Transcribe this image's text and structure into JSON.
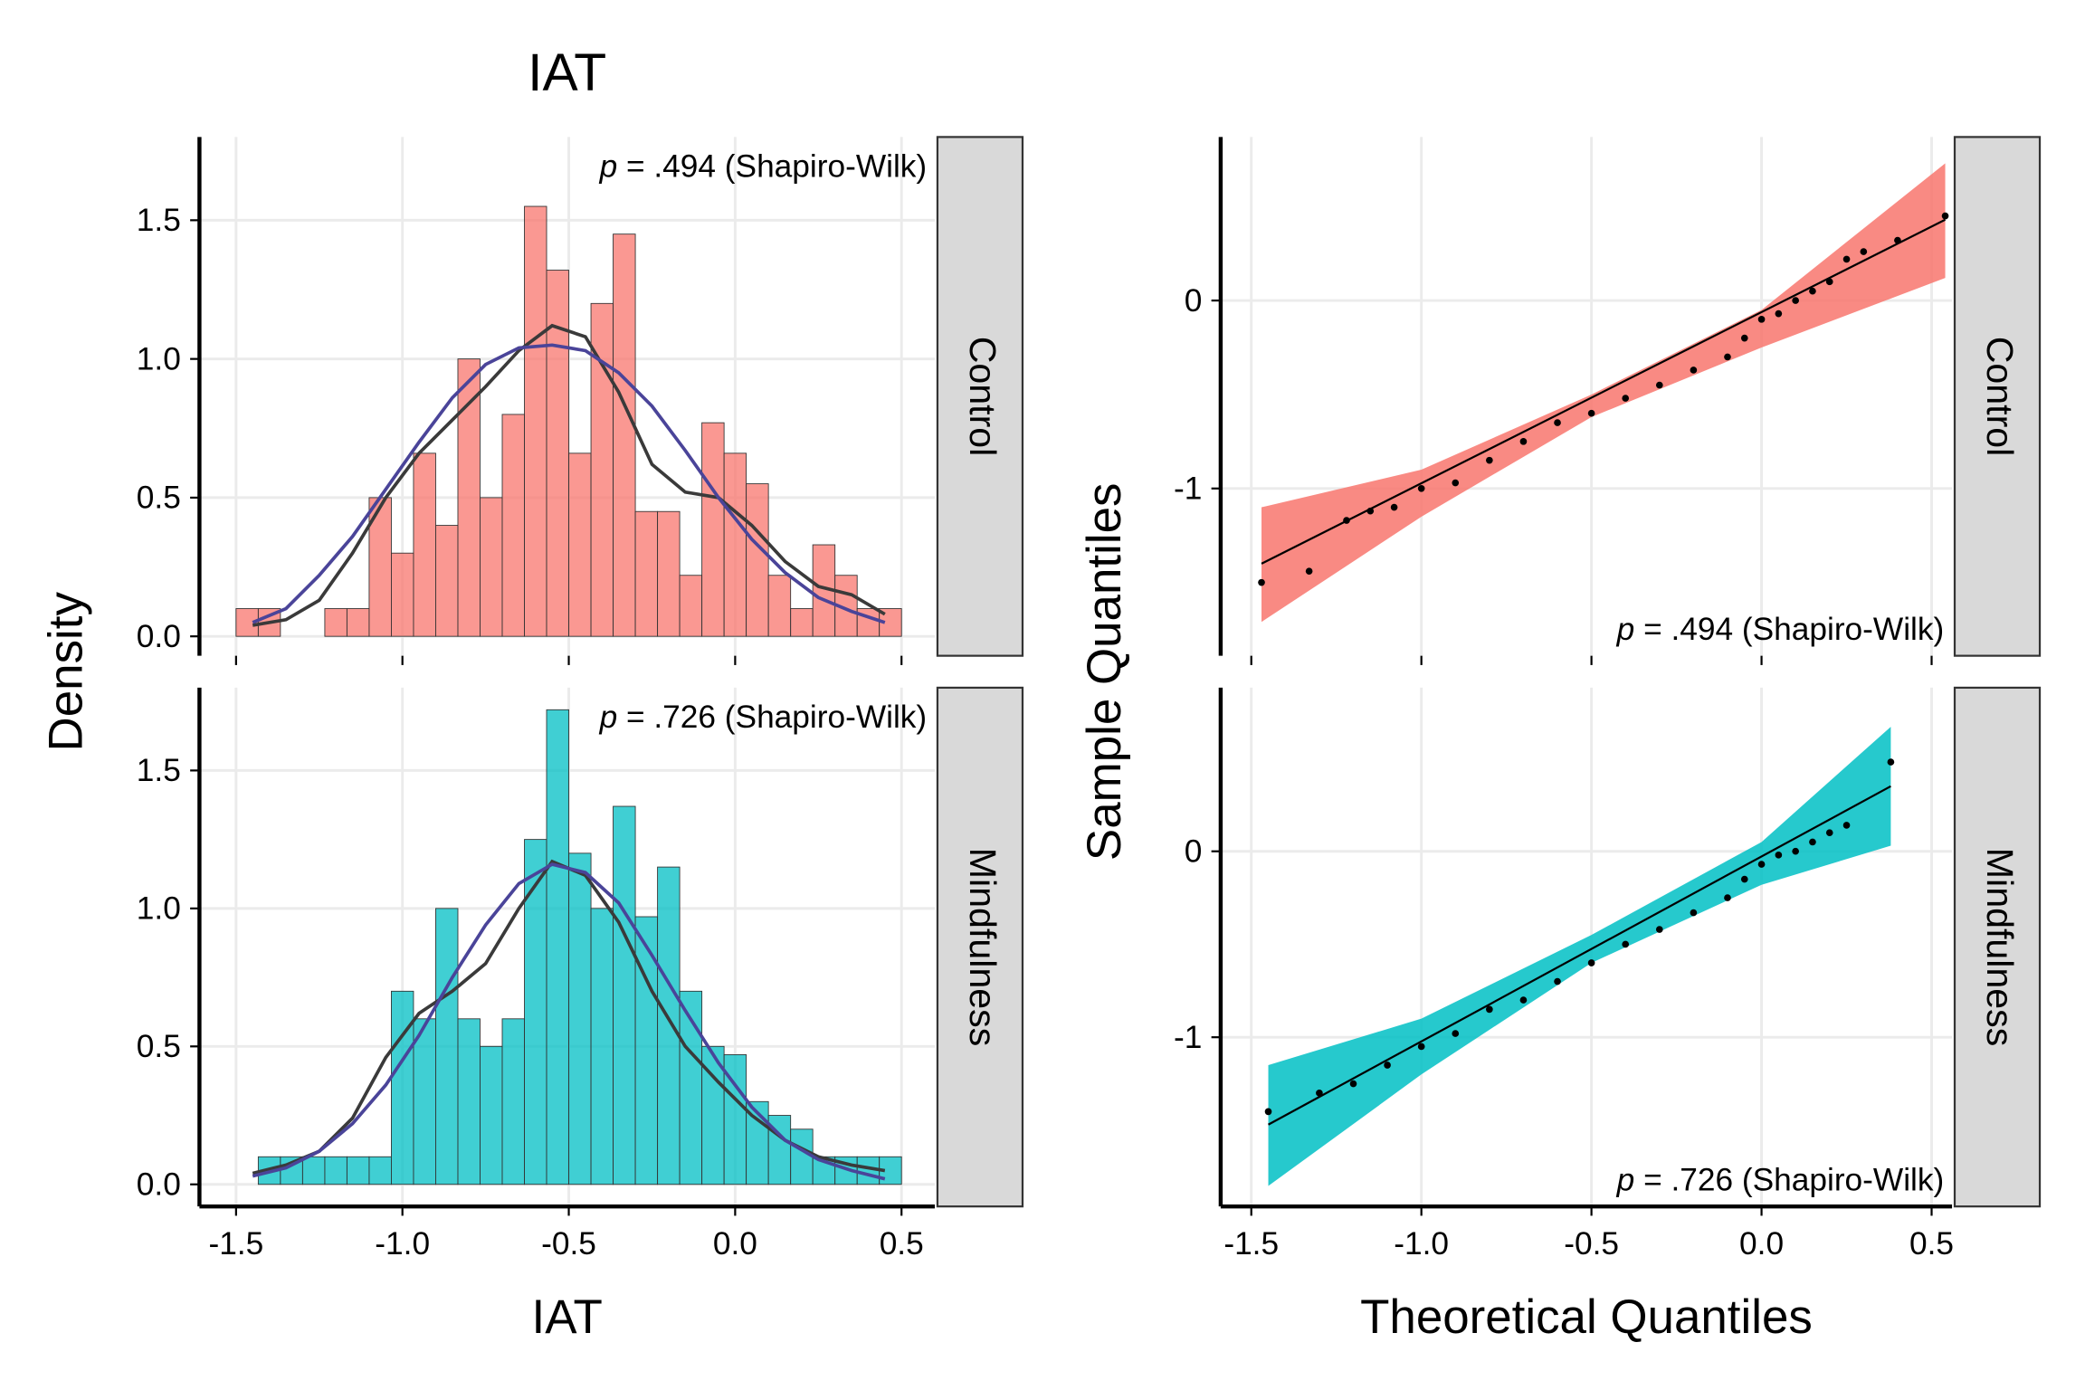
{
  "chart_data": [
    {
      "type": "histogram",
      "title": "IAT",
      "y_label": "Density",
      "facet": "Control",
      "color": "#F8766D",
      "annotation_prefix": "p",
      "annotation": " = .494 (Shapiro-Wilk)",
      "bins": [
        -1.5,
        -1.4333,
        -1.3667,
        -1.3,
        -1.2333,
        -1.1667,
        -1.1,
        -1.0333,
        -0.9667,
        -0.9,
        -0.8333,
        -0.7667,
        -0.7,
        -0.6333,
        -0.5667,
        -0.5,
        -0.4333,
        -0.3667,
        -0.3,
        -0.2333,
        -0.1667,
        -0.1,
        -0.0333,
        0.0333,
        0.1,
        0.1667,
        0.2333,
        0.3,
        0.3667,
        0.4333,
        0.5
      ],
      "values": [
        0.1,
        0.1,
        0,
        0,
        0.1,
        0.1,
        0.5,
        0.3,
        0.66,
        0.4,
        1.0,
        0.5,
        0.8,
        1.55,
        1.32,
        0.66,
        1.2,
        1.45,
        0.45,
        0.45,
        0.22,
        0.77,
        0.66,
        0.55,
        0.22,
        0.1,
        0.33,
        0.22,
        0.1,
        0.1
      ],
      "curve_x": [
        -1.45,
        -1.35,
        -1.25,
        -1.15,
        -1.05,
        -0.95,
        -0.85,
        -0.75,
        -0.65,
        -0.55,
        -0.45,
        -0.35,
        -0.25,
        -0.15,
        -0.05,
        0.05,
        0.15,
        0.25,
        0.35,
        0.45
      ],
      "curves": [
        {
          "color": "#3a3a3a",
          "values": [
            0.04,
            0.06,
            0.13,
            0.3,
            0.5,
            0.66,
            0.78,
            0.9,
            1.03,
            1.12,
            1.08,
            0.88,
            0.62,
            0.52,
            0.5,
            0.4,
            0.27,
            0.18,
            0.15,
            0.08
          ]
        },
        {
          "color": "#4a4499",
          "values": [
            0.05,
            0.1,
            0.22,
            0.36,
            0.53,
            0.7,
            0.86,
            0.98,
            1.04,
            1.05,
            1.03,
            0.95,
            0.83,
            0.67,
            0.5,
            0.35,
            0.23,
            0.14,
            0.09,
            0.05
          ]
        }
      ],
      "xlim": [
        -1.61,
        0.6
      ],
      "ylim": [
        -0.07,
        1.8
      ],
      "xticks": [
        -1.5,
        -1,
        -0.5,
        0,
        0.5
      ],
      "yticks": [
        {
          "value": 0,
          "label": "0.0"
        },
        0.5,
        {
          "value": 1,
          "label": "1.0"
        },
        1.5
      ],
      "grid": true
    },
    {
      "type": "histogram",
      "x_label": "IAT",
      "facet": "Mindfulness",
      "color": "#00BFC4",
      "annotation_prefix": "p",
      "annotation": " = .726 (Shapiro-Wilk)",
      "bins": [
        -1.5,
        -1.4333,
        -1.3667,
        -1.3,
        -1.2333,
        -1.1667,
        -1.1,
        -1.0333,
        -0.9667,
        -0.9,
        -0.8333,
        -0.7667,
        -0.7,
        -0.6333,
        -0.5667,
        -0.5,
        -0.4333,
        -0.3667,
        -0.3,
        -0.2333,
        -0.1667,
        -0.1,
        -0.0333,
        0.0333,
        0.1,
        0.1667,
        0.2333,
        0.3,
        0.3667,
        0.4333,
        0.5
      ],
      "values": [
        0,
        0.1,
        0.1,
        0.1,
        0.1,
        0.1,
        0.1,
        0.7,
        0.6,
        1.0,
        0.6,
        0.5,
        0.6,
        1.25,
        1.72,
        1.2,
        1.0,
        1.37,
        0.97,
        1.15,
        0.7,
        0.5,
        0.47,
        0.3,
        0.25,
        0.2,
        0.1,
        0.1,
        0.1,
        0.1
      ],
      "curve_x": [
        -1.45,
        -1.35,
        -1.25,
        -1.15,
        -1.05,
        -0.95,
        -0.85,
        -0.75,
        -0.65,
        -0.55,
        -0.45,
        -0.35,
        -0.25,
        -0.15,
        -0.05,
        0.05,
        0.15,
        0.25,
        0.35,
        0.45
      ],
      "curves": [
        {
          "color": "#3a3a3a",
          "values": [
            0.04,
            0.07,
            0.12,
            0.24,
            0.46,
            0.62,
            0.7,
            0.8,
            1.0,
            1.17,
            1.12,
            0.95,
            0.7,
            0.5,
            0.37,
            0.25,
            0.16,
            0.1,
            0.07,
            0.05
          ]
        },
        {
          "color": "#4a4499",
          "values": [
            0.03,
            0.06,
            0.12,
            0.22,
            0.36,
            0.54,
            0.75,
            0.94,
            1.09,
            1.16,
            1.13,
            1.02,
            0.83,
            0.63,
            0.44,
            0.28,
            0.16,
            0.09,
            0.05,
            0.02
          ]
        }
      ],
      "xlim": [
        -1.61,
        0.6
      ],
      "ylim": [
        -0.08,
        1.8
      ],
      "xticks": [
        -1.5,
        {
          "value": -1,
          "label": "-1.0"
        },
        -0.5,
        {
          "value": 0,
          "label": "0.0"
        },
        0.5
      ],
      "yticks": [
        {
          "value": 0,
          "label": "0.0"
        },
        0.5,
        {
          "value": 1,
          "label": "1.0"
        },
        1.5
      ],
      "grid": true
    },
    {
      "type": "qq",
      "y_label": "Sample Quantiles",
      "facet": "Control",
      "color": "#F8766D",
      "annotation_prefix": "p",
      "annotation": " = .494 (Shapiro-Wilk)",
      "x": [
        -1.47,
        -1.33,
        -1.22,
        -1.15,
        -1.08,
        -1.0,
        -0.9,
        -0.8,
        -0.7,
        -0.6,
        -0.5,
        -0.4,
        -0.3,
        -0.2,
        -0.1,
        -0.05,
        0.0,
        0.05,
        0.1,
        0.15,
        0.2,
        0.25,
        0.3,
        0.4,
        0.54
      ],
      "values": [
        -1.5,
        -1.44,
        -1.17,
        -1.12,
        -1.1,
        -1.0,
        -0.97,
        -0.85,
        -0.75,
        -0.65,
        -0.6,
        -0.52,
        -0.45,
        -0.37,
        -0.3,
        -0.2,
        -0.1,
        -0.07,
        0.0,
        0.05,
        0.1,
        0.22,
        0.26,
        0.32,
        0.45
      ],
      "line": {
        "x": [
          -1.47,
          0.54
        ],
        "values": [
          -1.4,
          0.43
        ]
      },
      "band": {
        "x": [
          -1.47,
          -1.0,
          -0.5,
          0,
          0.54
        ],
        "upper": [
          -1.1,
          -0.9,
          -0.5,
          -0.05,
          0.73
        ],
        "lower": [
          -1.71,
          -1.15,
          -0.62,
          -0.25,
          0.12
        ]
      },
      "xlim": [
        -1.59,
        0.56
      ],
      "ylim": [
        -1.89,
        0.87
      ],
      "xticks": [
        -1.5,
        -1,
        -0.5,
        0,
        0.5
      ],
      "yticks": [
        -1,
        0
      ],
      "grid": true
    },
    {
      "type": "qq",
      "x_label": "Theoretical Quantiles",
      "facet": "Mindfulness",
      "color": "#00BFC4",
      "annotation_prefix": "p",
      "annotation": " = .726 (Shapiro-Wilk)",
      "x": [
        -1.45,
        -1.3,
        -1.2,
        -1.1,
        -1.0,
        -0.9,
        -0.8,
        -0.7,
        -0.6,
        -0.5,
        -0.4,
        -0.3,
        -0.2,
        -0.1,
        -0.05,
        0.0,
        0.05,
        0.1,
        0.15,
        0.2,
        0.25,
        0.38
      ],
      "values": [
        -1.4,
        -1.3,
        -1.25,
        -1.15,
        -1.05,
        -0.98,
        -0.85,
        -0.8,
        -0.7,
        -0.6,
        -0.5,
        -0.42,
        -0.33,
        -0.25,
        -0.15,
        -0.07,
        -0.02,
        0.0,
        0.05,
        0.1,
        0.14,
        0.48
      ],
      "line": {
        "x": [
          -1.45,
          0.38
        ],
        "values": [
          -1.47,
          0.35
        ]
      },
      "band": {
        "x": [
          -1.45,
          -1.0,
          -0.5,
          0,
          0.38
        ],
        "upper": [
          -1.15,
          -0.9,
          -0.45,
          0.05,
          0.67
        ],
        "lower": [
          -1.8,
          -1.2,
          -0.6,
          -0.18,
          0.03
        ]
      },
      "xlim": [
        -1.59,
        0.56
      ],
      "ylim": [
        -1.91,
        0.88
      ],
      "xticks": [
        -1.5,
        {
          "value": -1,
          "label": "-1.0"
        },
        -0.5,
        {
          "value": 0,
          "label": "0.0"
        },
        0.5
      ],
      "yticks": [
        -1,
        0
      ],
      "grid": true
    }
  ]
}
